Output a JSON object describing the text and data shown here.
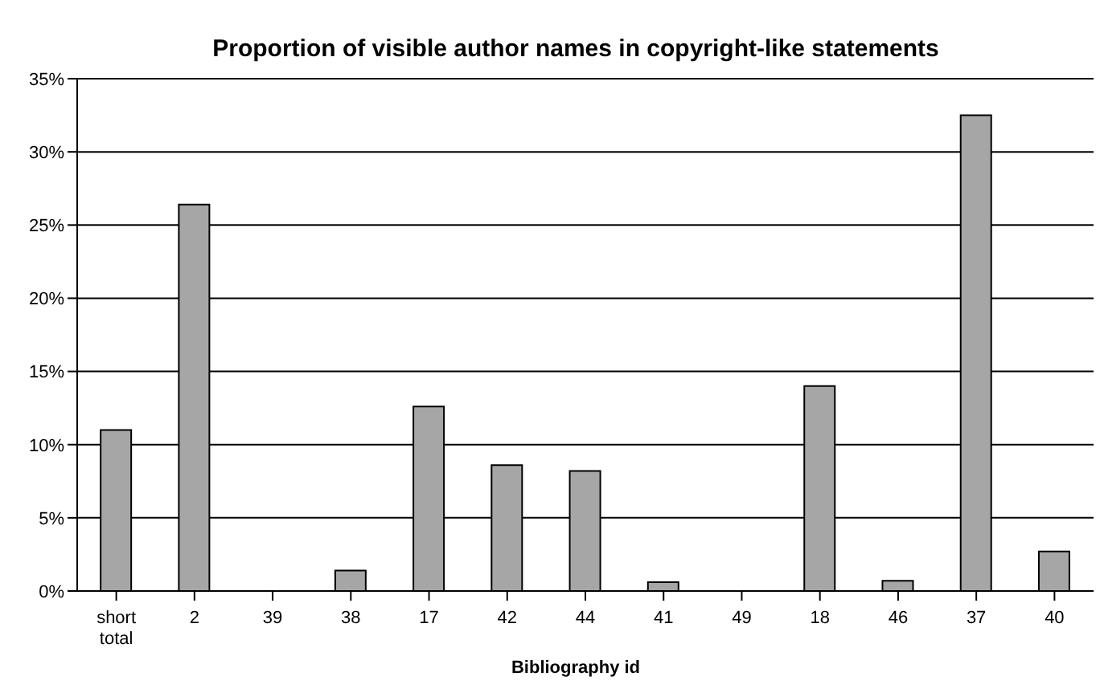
{
  "chart_data": {
    "type": "bar",
    "title": "Proportion of visible author names in copyright-like statements",
    "xlabel": "Bibliography id",
    "categories": [
      "short total",
      "2",
      "39",
      "38",
      "17",
      "42",
      "44",
      "41",
      "49",
      "18",
      "46",
      "37",
      "40"
    ],
    "values": [
      11.0,
      26.4,
      0,
      1.4,
      12.6,
      8.6,
      8.2,
      0.6,
      0,
      14.0,
      0.7,
      32.5,
      2.7
    ],
    "color": "#a6a6a6",
    "ylim": [
      0,
      35
    ],
    "yticks": [
      {
        "value": 0,
        "label": "0%"
      },
      {
        "value": 5,
        "label": "5%"
      },
      {
        "value": 10,
        "label": "10%"
      },
      {
        "value": 15,
        "label": "15%"
      },
      {
        "value": 20,
        "label": "20%"
      },
      {
        "value": 25,
        "label": "25%"
      },
      {
        "value": 30,
        "label": "30%"
      },
      {
        "value": 35,
        "label": "35%"
      }
    ],
    "grid": "y",
    "legend": false
  }
}
